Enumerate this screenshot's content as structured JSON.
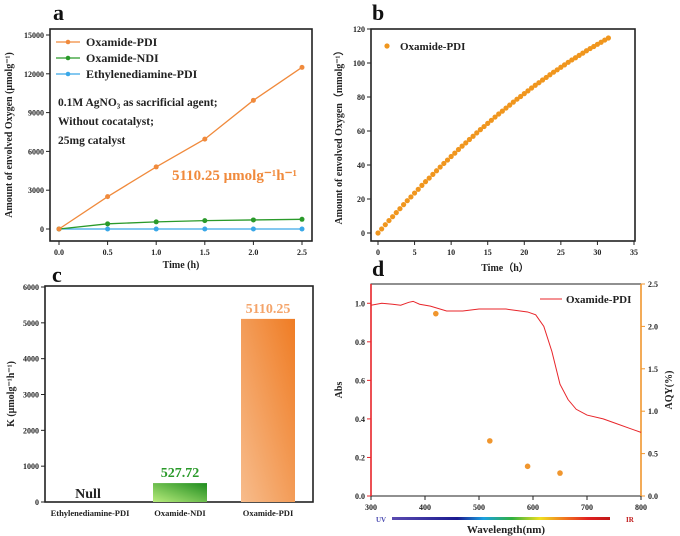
{
  "chart_data": [
    {
      "panel": "a",
      "type": "line",
      "xlabel": "Time (h)",
      "ylabel": "Amount of envolved Oxygen (μmolg⁻¹)",
      "xlim": [
        -0.1,
        2.6
      ],
      "ylim": [
        -1000,
        15500
      ],
      "xticks": [
        "0.0",
        "0.5",
        "1.0",
        "1.5",
        "2.0",
        "2.5"
      ],
      "yticks": [
        "0",
        "3000",
        "6000",
        "9000",
        "12000",
        "15000"
      ],
      "x": [
        0,
        0.5,
        1.0,
        1.5,
        2.0,
        2.5
      ],
      "series": [
        {
          "name": "Oxamide-PDI",
          "color": "#f08a3c",
          "values": [
            0,
            2500,
            4800,
            6950,
            9950,
            12500
          ]
        },
        {
          "name": "Oxamide-NDI",
          "color": "#2a9a2a",
          "values": [
            0,
            400,
            550,
            650,
            700,
            750
          ]
        },
        {
          "name": "Ethylenediamine-PDI",
          "color": "#3aa8e8",
          "values": [
            0,
            0,
            0,
            0,
            0,
            0
          ]
        }
      ],
      "annotations": [
        "0.1M AgNO₃ as sacrificial agent;",
        "Without cocatalyst;",
        "25mg catalyst"
      ],
      "rate_label": "5110.25 μmolg⁻¹h⁻¹",
      "legend": "top-left"
    },
    {
      "panel": "b",
      "type": "scatter",
      "xlabel": "Time（h）",
      "ylabel": "Amount of envolved Oxygen（mmolg⁻¹）",
      "xlim": [
        -1.5,
        35
      ],
      "ylim": [
        -4,
        120
      ],
      "xticks": [
        "0",
        "5",
        "10",
        "15",
        "20",
        "25",
        "30",
        "35"
      ],
      "yticks": [
        "0",
        "20",
        "40",
        "60",
        "80",
        "100",
        "120"
      ],
      "series": [
        {
          "name": "Oxamide-PDI",
          "color": "#f0961e",
          "x": [
            0,
            0.5,
            1,
            1.5,
            2,
            2.5,
            3,
            3.5,
            4,
            4.5,
            5,
            5.5,
            6,
            6.5,
            7,
            7.5,
            8,
            8.5,
            9,
            9.5,
            10,
            10.5,
            11,
            11.5,
            12,
            12.5,
            13,
            13.5,
            14,
            14.5,
            15,
            15.5,
            16,
            16.5,
            17,
            17.5,
            18,
            18.5,
            19,
            19.5,
            20,
            20.5,
            21,
            21.5,
            22,
            22.5,
            23,
            23.5,
            24,
            24.5,
            25,
            25.5,
            26,
            26.5,
            27,
            27.5,
            28,
            28.5,
            29,
            29.5,
            30,
            30.5,
            31,
            31.5
          ],
          "values": [
            0,
            2.4,
            4.9,
            7.3,
            9.6,
            12.0,
            14.3,
            16.7,
            19.0,
            21.2,
            23.5,
            25.7,
            28.0,
            30.2,
            32.3,
            34.5,
            36.6,
            38.8,
            40.9,
            42.9,
            45.0,
            47.0,
            49.1,
            51.1,
            53.0,
            55.0,
            56.9,
            58.9,
            60.8,
            62.6,
            64.5,
            66.3,
            68.2,
            70.0,
            71.7,
            73.5,
            75.2,
            77.0,
            78.7,
            80.3,
            82.0,
            83.6,
            85.3,
            86.9,
            88.4,
            90.0,
            91.5,
            93.1,
            94.6,
            96.0,
            97.5,
            98.9,
            100.4,
            101.8,
            103.1,
            104.5,
            105.8,
            107.2,
            108.5,
            109.7,
            111.0,
            112.2,
            113.5,
            114.7
          ]
        }
      ],
      "legend": "top-left"
    },
    {
      "panel": "c",
      "type": "bar",
      "xlabel": "",
      "ylabel": "K (μmolg⁻¹h⁻¹)",
      "ylim": [
        0,
        6000
      ],
      "yticks": [
        "0",
        "1000",
        "2000",
        "3000",
        "4000",
        "5000",
        "6000"
      ],
      "categories": [
        "Ethylenediamine-PDI",
        "Oxamide-NDI",
        "Oxamide-PDI"
      ],
      "values": [
        0,
        527.72,
        5110.25
      ],
      "data_labels": [
        "Null",
        "527.72",
        "5110.25"
      ],
      "colors": [
        "#222222",
        "#2a9a2a",
        "#f4a46a"
      ]
    },
    {
      "panel": "d",
      "type": "line",
      "xlabel": "Wavelength(nm)",
      "ylabel": "Abs",
      "y2label": "AQY(%)",
      "xlim": [
        300,
        800
      ],
      "ylim": [
        0,
        1.1
      ],
      "y2lim": [
        0,
        2.5
      ],
      "xticks": [
        "300",
        "400",
        "500",
        "600",
        "700",
        "800"
      ],
      "yticks": [
        "0.0",
        "0.2",
        "0.4",
        "0.6",
        "0.8",
        "1.0"
      ],
      "y2ticks": [
        "0.0",
        "0.5",
        "1.0",
        "1.5",
        "2.0",
        "2.5"
      ],
      "spectrum_labels": [
        "UV",
        "IR"
      ],
      "series": [
        {
          "name": "Oxamide-PDI",
          "type": "line",
          "axis": "left",
          "color": "#e8252a",
          "x": [
            300,
            320,
            340,
            355,
            370,
            378,
            390,
            410,
            440,
            470,
            500,
            550,
            590,
            605,
            620,
            635,
            650,
            665,
            680,
            700,
            730,
            750,
            780,
            800
          ],
          "values": [
            0.99,
            1.0,
            0.995,
            0.99,
            1.005,
            1.01,
            0.995,
            0.985,
            0.96,
            0.96,
            0.97,
            0.97,
            0.955,
            0.94,
            0.88,
            0.75,
            0.58,
            0.5,
            0.45,
            0.42,
            0.4,
            0.38,
            0.35,
            0.33
          ]
        },
        {
          "name": "AQY",
          "type": "scatter",
          "axis": "right",
          "color": "#f0962e",
          "x": [
            420,
            520,
            590,
            650
          ],
          "values": [
            2.15,
            0.65,
            0.35,
            0.27
          ]
        }
      ],
      "legend": "top-right"
    }
  ],
  "panel_labels": [
    "a",
    "b",
    "c",
    "d"
  ]
}
